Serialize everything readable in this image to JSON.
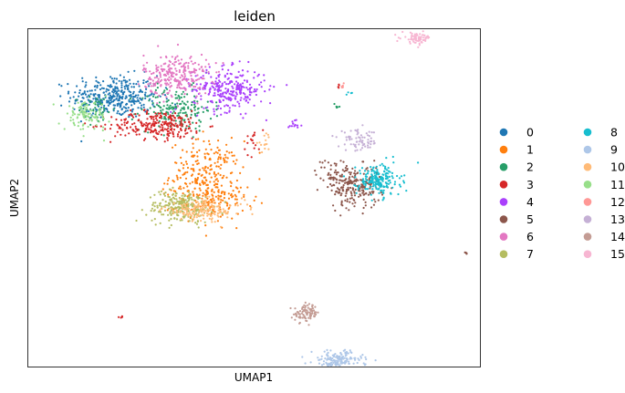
{
  "chart_data": {
    "type": "scatter",
    "title": "leiden",
    "xlabel": "UMAP1",
    "ylabel": "UMAP2",
    "xlim": [
      -7.5,
      17.5
    ],
    "ylim": [
      -7.5,
      11.5
    ],
    "xticks": [],
    "yticks": [],
    "grid": false,
    "legend_position": "right, outside plot, 2 columns",
    "legend_marker": "filled circle",
    "series": [
      {
        "name": "0",
        "color": "#1f77b4",
        "clusters": [
          {
            "cx": -2.7,
            "cy": 7.7,
            "sx": 1.2,
            "sy": 0.6,
            "n": 360
          }
        ]
      },
      {
        "name": "1",
        "color": "#ff7f0e",
        "clusters": [
          {
            "cx": 2.3,
            "cy": 3.2,
            "sx": 1.0,
            "sy": 1.0,
            "n": 260
          },
          {
            "cx": 2.8,
            "cy": 1.8,
            "sx": 0.9,
            "sy": 0.5,
            "n": 100
          }
        ]
      },
      {
        "name": "2",
        "color": "#279e68",
        "clusters": [
          {
            "cx": 0.7,
            "cy": 7.0,
            "sx": 1.0,
            "sy": 0.6,
            "n": 180
          },
          {
            "cx": -3.7,
            "cy": 7.0,
            "sx": 0.5,
            "sy": 0.4,
            "n": 40
          },
          {
            "cx": 9.6,
            "cy": 7.2,
            "sx": 0.12,
            "sy": 0.1,
            "n": 6
          }
        ]
      },
      {
        "name": "3",
        "color": "#d62728",
        "clusters": [
          {
            "cx": -0.3,
            "cy": 6.1,
            "sx": 1.3,
            "sy": 0.4,
            "n": 260
          },
          {
            "cx": 4.9,
            "cy": 5.2,
            "sx": 0.3,
            "sy": 0.4,
            "n": 18
          },
          {
            "cx": -2.4,
            "cy": -4.7,
            "sx": 0.06,
            "sy": 0.06,
            "n": 4
          },
          {
            "cx": 9.7,
            "cy": 8.3,
            "sx": 0.06,
            "sy": 0.05,
            "n": 4
          }
        ]
      },
      {
        "name": "4",
        "color": "#aa40fc",
        "clusters": [
          {
            "cx": 3.6,
            "cy": 8.1,
            "sx": 1.0,
            "sy": 0.6,
            "n": 280
          },
          {
            "cx": 7.3,
            "cy": 6.2,
            "sx": 0.2,
            "sy": 0.15,
            "n": 14
          }
        ]
      },
      {
        "name": "5",
        "color": "#8c564b",
        "clusters": [
          {
            "cx": 10.6,
            "cy": 2.6,
            "sx": 0.7,
            "sy": 0.6,
            "n": 200
          },
          {
            "cx": 9.4,
            "cy": 3.4,
            "sx": 0.5,
            "sy": 0.4,
            "n": 50
          },
          {
            "cx": 16.6,
            "cy": -1.1,
            "sx": 0.12,
            "sy": 0.04,
            "n": 5
          }
        ]
      },
      {
        "name": "6",
        "color": "#e377c2",
        "clusters": [
          {
            "cx": 0.7,
            "cy": 8.9,
            "sx": 0.9,
            "sy": 0.6,
            "n": 260
          }
        ]
      },
      {
        "name": "7",
        "color": "#b5bd61",
        "clusters": [
          {
            "cx": 0.9,
            "cy": 1.5,
            "sx": 0.9,
            "sy": 0.45,
            "n": 230
          }
        ]
      },
      {
        "name": "8",
        "color": "#17becf",
        "clusters": [
          {
            "cx": 11.9,
            "cy": 3.0,
            "sx": 0.6,
            "sy": 0.45,
            "n": 190
          },
          {
            "cx": 10.3,
            "cy": 7.8,
            "sx": 0.06,
            "sy": 0.06,
            "n": 4
          }
        ]
      },
      {
        "name": "9",
        "color": "#aec7e8",
        "clusters": [
          {
            "cx": 9.6,
            "cy": -7.2,
            "sx": 0.7,
            "sy": 0.3,
            "n": 200
          }
        ]
      },
      {
        "name": "10",
        "color": "#ffbb78",
        "clusters": [
          {
            "cx": 2.2,
            "cy": 1.3,
            "sx": 1.1,
            "sy": 0.3,
            "n": 150
          },
          {
            "cx": 5.6,
            "cy": 5.1,
            "sx": 0.2,
            "sy": 0.2,
            "n": 15
          }
        ]
      },
      {
        "name": "11",
        "color": "#98df8a",
        "clusters": [
          {
            "cx": -4.3,
            "cy": 6.6,
            "sx": 0.6,
            "sy": 0.4,
            "n": 100
          }
        ]
      },
      {
        "name": "12",
        "color": "#ff9896",
        "clusters": [
          {
            "cx": 9.9,
            "cy": 8.3,
            "sx": 0.08,
            "sy": 0.06,
            "n": 5
          }
        ]
      },
      {
        "name": "13",
        "color": "#c5b0d5",
        "clusters": [
          {
            "cx": 10.8,
            "cy": 5.2,
            "sx": 0.55,
            "sy": 0.3,
            "n": 70
          }
        ]
      },
      {
        "name": "14",
        "color": "#c49c94",
        "clusters": [
          {
            "cx": 7.9,
            "cy": -4.5,
            "sx": 0.35,
            "sy": 0.25,
            "n": 90
          }
        ]
      },
      {
        "name": "15",
        "color": "#f7b6d2",
        "clusters": [
          {
            "cx": 14.0,
            "cy": 11.0,
            "sx": 0.4,
            "sy": 0.15,
            "n": 70
          }
        ]
      }
    ]
  }
}
